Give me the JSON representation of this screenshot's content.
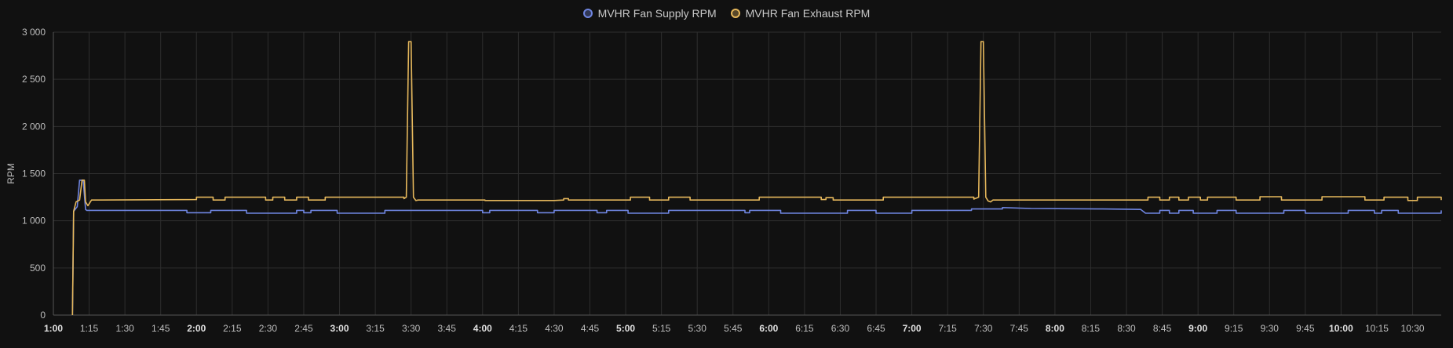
{
  "chart_data": {
    "type": "line",
    "ylabel": "RPM",
    "ylim": [
      0,
      3000
    ],
    "yticks": [
      "0",
      "500",
      "1 000",
      "1 500",
      "2 000",
      "2 500",
      "3 000"
    ],
    "ytick_values": [
      0,
      500,
      1000,
      1500,
      2000,
      2500,
      3000
    ],
    "xlim": [
      60,
      642
    ],
    "xticks": [
      {
        "label": "1:00",
        "t": 60,
        "major": true
      },
      {
        "label": "1:15",
        "t": 75,
        "major": false
      },
      {
        "label": "1:30",
        "t": 90,
        "major": false
      },
      {
        "label": "1:45",
        "t": 105,
        "major": false
      },
      {
        "label": "2:00",
        "t": 120,
        "major": true
      },
      {
        "label": "2:15",
        "t": 135,
        "major": false
      },
      {
        "label": "2:30",
        "t": 150,
        "major": false
      },
      {
        "label": "2:45",
        "t": 165,
        "major": false
      },
      {
        "label": "3:00",
        "t": 180,
        "major": true
      },
      {
        "label": "3:15",
        "t": 195,
        "major": false
      },
      {
        "label": "3:30",
        "t": 210,
        "major": false
      },
      {
        "label": "3:45",
        "t": 225,
        "major": false
      },
      {
        "label": "4:00",
        "t": 240,
        "major": true
      },
      {
        "label": "4:15",
        "t": 255,
        "major": false
      },
      {
        "label": "4:30",
        "t": 270,
        "major": false
      },
      {
        "label": "4:45",
        "t": 285,
        "major": false
      },
      {
        "label": "5:00",
        "t": 300,
        "major": true
      },
      {
        "label": "5:15",
        "t": 315,
        "major": false
      },
      {
        "label": "5:30",
        "t": 330,
        "major": false
      },
      {
        "label": "5:45",
        "t": 345,
        "major": false
      },
      {
        "label": "6:00",
        "t": 360,
        "major": true
      },
      {
        "label": "6:15",
        "t": 375,
        "major": false
      },
      {
        "label": "6:30",
        "t": 390,
        "major": false
      },
      {
        "label": "6:45",
        "t": 405,
        "major": false
      },
      {
        "label": "7:00",
        "t": 420,
        "major": true
      },
      {
        "label": "7:15",
        "t": 435,
        "major": false
      },
      {
        "label": "7:30",
        "t": 450,
        "major": false
      },
      {
        "label": "7:45",
        "t": 465,
        "major": false
      },
      {
        "label": "8:00",
        "t": 480,
        "major": true
      },
      {
        "label": "8:15",
        "t": 495,
        "major": false
      },
      {
        "label": "8:30",
        "t": 510,
        "major": false
      },
      {
        "label": "8:45",
        "t": 525,
        "major": false
      },
      {
        "label": "9:00",
        "t": 540,
        "major": true
      },
      {
        "label": "9:15",
        "t": 555,
        "major": false
      },
      {
        "label": "9:30",
        "t": 570,
        "major": false
      },
      {
        "label": "9:45",
        "t": 585,
        "major": false
      },
      {
        "label": "10:00",
        "t": 600,
        "major": true
      },
      {
        "label": "10:15",
        "t": 615,
        "major": false
      },
      {
        "label": "10:30",
        "t": 630,
        "major": false
      }
    ],
    "grid": true,
    "legend_position": "top-center",
    "series": [
      {
        "name": "MVHR Fan Supply RPM",
        "color": "#6f85e0",
        "points": [
          [
            68,
            0
          ],
          [
            68.5,
            1100
          ],
          [
            70,
            1150
          ],
          [
            71,
            1430
          ],
          [
            72.5,
            1430
          ],
          [
            73.5,
            1120
          ],
          [
            74,
            1110
          ],
          [
            110,
            1110
          ],
          [
            116,
            1110
          ],
          [
            116,
            1085
          ],
          [
            126,
            1085
          ],
          [
            126,
            1110
          ],
          [
            141,
            1110
          ],
          [
            141,
            1080
          ],
          [
            162,
            1080
          ],
          [
            162,
            1110
          ],
          [
            165,
            1110
          ],
          [
            165,
            1085
          ],
          [
            168,
            1085
          ],
          [
            168,
            1110
          ],
          [
            179,
            1110
          ],
          [
            179,
            1080
          ],
          [
            199,
            1080
          ],
          [
            199,
            1110
          ],
          [
            233,
            1110
          ],
          [
            240,
            1110
          ],
          [
            240,
            1085
          ],
          [
            243,
            1085
          ],
          [
            243,
            1110
          ],
          [
            263,
            1110
          ],
          [
            263,
            1085
          ],
          [
            270,
            1085
          ],
          [
            270,
            1110
          ],
          [
            288,
            1110
          ],
          [
            288,
            1085
          ],
          [
            292,
            1085
          ],
          [
            292,
            1110
          ],
          [
            301,
            1110
          ],
          [
            301,
            1080
          ],
          [
            318,
            1080
          ],
          [
            318,
            1110
          ],
          [
            350,
            1110
          ],
          [
            350,
            1085
          ],
          [
            352,
            1085
          ],
          [
            352,
            1110
          ],
          [
            365,
            1110
          ],
          [
            365,
            1080
          ],
          [
            393,
            1080
          ],
          [
            393,
            1110
          ],
          [
            405,
            1110
          ],
          [
            405,
            1080
          ],
          [
            420,
            1080
          ],
          [
            420,
            1110
          ],
          [
            445,
            1110
          ],
          [
            445,
            1125
          ],
          [
            458,
            1125
          ],
          [
            458,
            1140
          ],
          [
            470,
            1130
          ],
          [
            500,
            1125
          ],
          [
            516,
            1120
          ],
          [
            518,
            1080
          ],
          [
            524,
            1080
          ],
          [
            524,
            1110
          ],
          [
            528,
            1110
          ],
          [
            528,
            1080
          ],
          [
            532,
            1080
          ],
          [
            532,
            1110
          ],
          [
            538,
            1110
          ],
          [
            538,
            1080
          ],
          [
            548,
            1080
          ],
          [
            548,
            1110
          ],
          [
            556,
            1110
          ],
          [
            556,
            1080
          ],
          [
            576,
            1080
          ],
          [
            576,
            1110
          ],
          [
            585,
            1110
          ],
          [
            585,
            1080
          ],
          [
            603,
            1080
          ],
          [
            603,
            1110
          ],
          [
            614,
            1110
          ],
          [
            614,
            1080
          ],
          [
            617,
            1080
          ],
          [
            617,
            1110
          ],
          [
            624,
            1110
          ],
          [
            624,
            1080
          ],
          [
            642,
            1080
          ],
          [
            642,
            1110
          ]
        ]
      },
      {
        "name": "MVHR Fan Exhaust RPM",
        "color": "#e6b85c",
        "points": [
          [
            68,
            0
          ],
          [
            68.5,
            1100
          ],
          [
            69.5,
            1200
          ],
          [
            71,
            1220
          ],
          [
            72,
            1430
          ],
          [
            73,
            1430
          ],
          [
            73.5,
            1200
          ],
          [
            74.5,
            1160
          ],
          [
            76,
            1220
          ],
          [
            120,
            1225
          ],
          [
            120,
            1250
          ],
          [
            127,
            1250
          ],
          [
            127,
            1220
          ],
          [
            132,
            1220
          ],
          [
            132,
            1250
          ],
          [
            149,
            1250
          ],
          [
            149,
            1220
          ],
          [
            152,
            1220
          ],
          [
            152,
            1250
          ],
          [
            157,
            1250
          ],
          [
            157,
            1220
          ],
          [
            162,
            1220
          ],
          [
            162,
            1250
          ],
          [
            167,
            1250
          ],
          [
            167,
            1220
          ],
          [
            174,
            1220
          ],
          [
            174,
            1250
          ],
          [
            207,
            1250
          ],
          [
            207,
            1235
          ],
          [
            208,
            1250
          ],
          [
            209,
            2900
          ],
          [
            210,
            2900
          ],
          [
            211,
            1250
          ],
          [
            212,
            1215
          ],
          [
            213,
            1220
          ],
          [
            241,
            1220
          ],
          [
            241,
            1215
          ],
          [
            270,
            1215
          ],
          [
            274,
            1220
          ],
          [
            274,
            1235
          ],
          [
            276,
            1235
          ],
          [
            276,
            1220
          ],
          [
            302,
            1220
          ],
          [
            302,
            1250
          ],
          [
            310,
            1250
          ],
          [
            310,
            1220
          ],
          [
            318,
            1220
          ],
          [
            318,
            1250
          ],
          [
            327,
            1250
          ],
          [
            327,
            1220
          ],
          [
            356,
            1220
          ],
          [
            356,
            1250
          ],
          [
            382,
            1250
          ],
          [
            382,
            1225
          ],
          [
            384,
            1225
          ],
          [
            384,
            1245
          ],
          [
            387,
            1245
          ],
          [
            387,
            1220
          ],
          [
            408,
            1220
          ],
          [
            408,
            1250
          ],
          [
            446,
            1250
          ],
          [
            446,
            1230
          ],
          [
            448,
            1250
          ],
          [
            449,
            2900
          ],
          [
            450,
            2900
          ],
          [
            451,
            1250
          ],
          [
            452,
            1210
          ],
          [
            453,
            1200
          ],
          [
            454,
            1220
          ],
          [
            519,
            1220
          ],
          [
            519,
            1250
          ],
          [
            524,
            1250
          ],
          [
            524,
            1220
          ],
          [
            528,
            1220
          ],
          [
            528,
            1250
          ],
          [
            532,
            1250
          ],
          [
            532,
            1220
          ],
          [
            536,
            1220
          ],
          [
            536,
            1250
          ],
          [
            541,
            1250
          ],
          [
            541,
            1220
          ],
          [
            544,
            1220
          ],
          [
            544,
            1250
          ],
          [
            556,
            1250
          ],
          [
            556,
            1220
          ],
          [
            566,
            1220
          ],
          [
            566,
            1255
          ],
          [
            575,
            1255
          ],
          [
            575,
            1220
          ],
          [
            592,
            1220
          ],
          [
            592,
            1255
          ],
          [
            610,
            1255
          ],
          [
            610,
            1220
          ],
          [
            618,
            1220
          ],
          [
            618,
            1250
          ],
          [
            628,
            1250
          ],
          [
            628,
            1215
          ],
          [
            632,
            1215
          ],
          [
            632,
            1250
          ],
          [
            642,
            1250
          ],
          [
            642,
            1220
          ]
        ]
      }
    ]
  }
}
